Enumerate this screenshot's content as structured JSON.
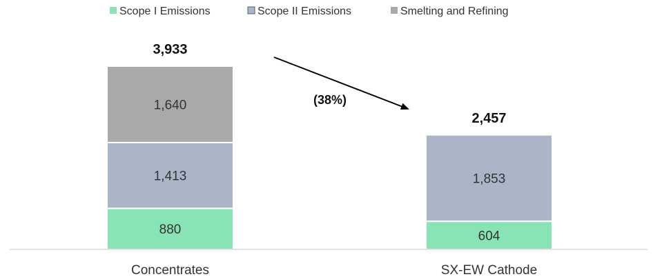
{
  "chart_data": {
    "type": "bar",
    "stacked": true,
    "categories": [
      "Concentrates",
      "SX-EW Cathode"
    ],
    "series": [
      {
        "name": "Scope I Emissions",
        "color": "#88e3b5",
        "values": [
          880,
          604
        ]
      },
      {
        "name": "Scope II Emissions",
        "color": "#aab6c8",
        "values": [
          1413,
          1853
        ]
      },
      {
        "name": "Smelting and Refining",
        "color": "#a9a9a9",
        "values": [
          1640,
          0
        ]
      }
    ],
    "segment_labels": [
      [
        "880",
        "1,413",
        "1,640"
      ],
      [
        "604",
        "1,853",
        ""
      ]
    ],
    "totals": [
      3933,
      2457
    ],
    "total_labels": [
      "3,933",
      "2,457"
    ],
    "annotation": {
      "text": "(38%)",
      "arrow": "Concentrates total to SX-EW Cathode total"
    },
    "legend_position": "top",
    "grid": false,
    "ylim": [
      0,
      4800
    ]
  }
}
